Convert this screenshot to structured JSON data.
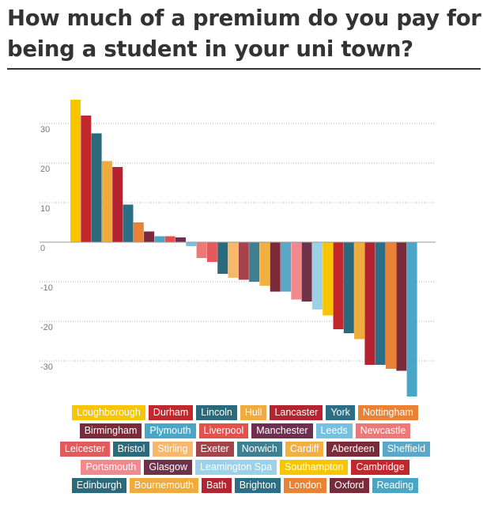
{
  "title": "How much of a premium do you pay for being a student in your uni town?",
  "chart_data": {
    "type": "bar",
    "title": "How much of a premium do you pay for being a student in your uni town?",
    "xlabel": "",
    "ylabel": "",
    "ylim": [
      -40,
      38
    ],
    "yticks": [
      30,
      20,
      10,
      0,
      -10,
      -20,
      -30
    ],
    "grid": true,
    "legend_placement": "bottom",
    "categories": [
      "Loughborough",
      "Durham",
      "Lincoln",
      "Hull",
      "Lancaster",
      "York",
      "Nottingham",
      "Birmingham",
      "Plymouth",
      "Liverpool",
      "Manchester",
      "Leeds",
      "Newcastle",
      "Leicester",
      "Bristol",
      "Stirling",
      "Exeter",
      "Norwich",
      "Cardiff",
      "Aberdeen",
      "Sheffield",
      "Portsmouth",
      "Glasgow",
      "Leamington Spa",
      "Southampton",
      "Cambridge",
      "Edinburgh",
      "Bournemouth",
      "Bath",
      "Brighton",
      "London",
      "Oxford",
      "Reading"
    ],
    "values": [
      36,
      32,
      27.5,
      20.5,
      19,
      9.5,
      5,
      2.7,
      1.5,
      1.5,
      1.2,
      -1,
      -4,
      -5,
      -8,
      -9,
      -9.5,
      -10,
      -11,
      -12.5,
      -12.5,
      -14.5,
      -15,
      -17,
      -18.5,
      -22,
      -23,
      -24.5,
      -31,
      -31,
      -32,
      -32.5,
      -39
    ],
    "colors": [
      "#f7c600",
      "#c1272d",
      "#2a6a7c",
      "#efab3c",
      "#b32430",
      "#2c6e85",
      "#ea8235",
      "#7b2a3a",
      "#4aa6c7",
      "#e0524b",
      "#6e2e52",
      "#74c1e2",
      "#ec7978",
      "#e35a5c",
      "#2a6a7c",
      "#f7b86a",
      "#a6424c",
      "#3e7f92",
      "#f2b040",
      "#7b2a3a",
      "#5aa7c9",
      "#f08a8e",
      "#6e3348",
      "#9bd2ea",
      "#f7c600",
      "#c1272d",
      "#2a6a7c",
      "#efab3c",
      "#b32430",
      "#2c6e85",
      "#ea8235",
      "#7b2a3a",
      "#4aa6c7"
    ]
  }
}
